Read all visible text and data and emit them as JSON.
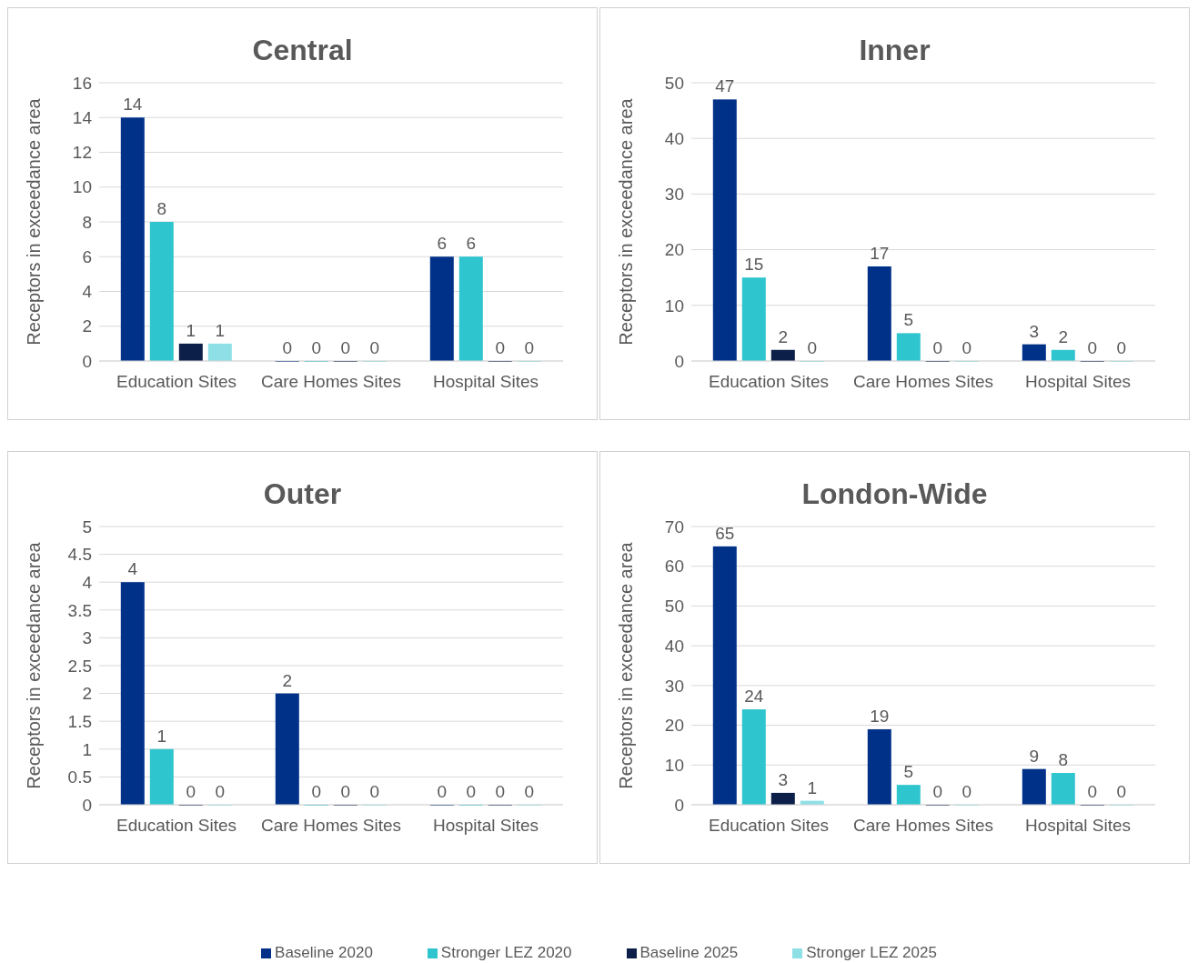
{
  "chart_data": [
    {
      "type": "bar",
      "title": "Central",
      "ylabel": "Receptors in exceedance area",
      "categories": [
        "Education Sites",
        "Care Homes Sites",
        "Hospital Sites"
      ],
      "ylim": [
        0,
        16
      ],
      "yticks": [
        0,
        2,
        4,
        6,
        8,
        10,
        12,
        14,
        16
      ],
      "grid": "y",
      "data_labels": true,
      "series": [
        {
          "color": "#003189",
          "values": [
            14,
            0,
            6
          ]
        },
        {
          "color": "#2ec5ce",
          "values": [
            8,
            0,
            6
          ]
        },
        {
          "color": "#0b1f48",
          "values": [
            1,
            0,
            0
          ]
        },
        {
          "color": "#8ee0e6",
          "values": [
            1,
            0,
            0
          ]
        }
      ]
    },
    {
      "type": "bar",
      "title": "Inner",
      "ylabel": "Receptors in exceedance area",
      "categories": [
        "Education Sites",
        "Care Homes Sites",
        "Hospital Sites"
      ],
      "ylim": [
        0,
        50
      ],
      "yticks": [
        0,
        10,
        20,
        30,
        40,
        50
      ],
      "grid": "y",
      "data_labels": true,
      "series": [
        {
          "color": "#003189",
          "values": [
            47,
            17,
            3
          ]
        },
        {
          "color": "#2ec5ce",
          "values": [
            15,
            5,
            2
          ]
        },
        {
          "color": "#0b1f48",
          "values": [
            2,
            0,
            0
          ]
        },
        {
          "color": "#8ee0e6",
          "values": [
            0,
            0,
            0
          ]
        }
      ]
    },
    {
      "type": "bar",
      "title": "Outer",
      "ylabel": "Receptors in exceedance area",
      "categories": [
        "Education Sites",
        "Care Homes Sites",
        "Hospital Sites"
      ],
      "ylim": [
        0,
        5
      ],
      "yticks": [
        0,
        0.5,
        1,
        1.5,
        2,
        2.5,
        3,
        3.5,
        4,
        4.5,
        5
      ],
      "grid": "y",
      "data_labels": true,
      "series": [
        {
          "color": "#003189",
          "values": [
            4,
            2,
            0
          ]
        },
        {
          "color": "#2ec5ce",
          "values": [
            1,
            0,
            0
          ]
        },
        {
          "color": "#0b1f48",
          "values": [
            0,
            0,
            0
          ]
        },
        {
          "color": "#8ee0e6",
          "values": [
            0,
            0,
            0
          ]
        }
      ]
    },
    {
      "type": "bar",
      "title": "London-Wide",
      "ylabel": "Receptors in exceedance area",
      "categories": [
        "Education Sites",
        "Care Homes Sites",
        "Hospital Sites"
      ],
      "ylim": [
        0,
        70
      ],
      "yticks": [
        0,
        10,
        20,
        30,
        40,
        50,
        60,
        70
      ],
      "grid": "y",
      "data_labels": true,
      "legend": "bottom",
      "series": [
        {
          "name": "Baseline 2020",
          "color": "#003189",
          "values": [
            65,
            19,
            9
          ]
        },
        {
          "name": "Stronger LEZ 2020",
          "color": "#2ec5ce",
          "values": [
            24,
            5,
            8
          ]
        },
        {
          "name": "Baseline 2025",
          "color": "#0b1f48",
          "values": [
            3,
            0,
            0
          ]
        },
        {
          "name": "Stronger LEZ 2025",
          "color": "#8ee0e6",
          "values": [
            1,
            0,
            0
          ]
        }
      ]
    }
  ]
}
